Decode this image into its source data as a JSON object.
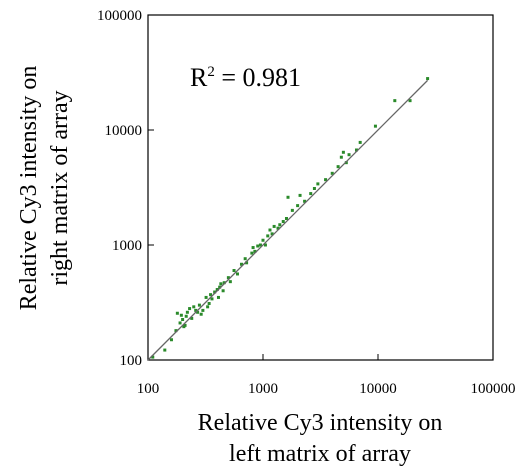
{
  "chart_data": {
    "type": "scatter",
    "x_scale": "log",
    "y_scale": "log",
    "xlim": [
      100,
      100000
    ],
    "ylim": [
      100,
      100000
    ],
    "x_ticks": [
      "100",
      "1000",
      "10000",
      "100000"
    ],
    "y_ticks": [
      "100",
      "1000",
      "10000",
      "100000"
    ],
    "xlabel_lines": [
      "Relative Cy3 intensity on",
      "left matrix of array"
    ],
    "ylabel_lines": [
      "Relative Cy3 intensity on",
      "right matrix of array"
    ],
    "annotation": {
      "base": "R",
      "sup": "2",
      "rest": " = 0.981"
    },
    "grid": false,
    "point_color": "#2a8a2a",
    "line_color": "#666666",
    "fit_line": [
      [
        100,
        100
      ],
      [
        27000,
        27000
      ]
    ],
    "points": [
      [
        110,
        106
      ],
      [
        140,
        122
      ],
      [
        160,
        150
      ],
      [
        175,
        180
      ],
      [
        180,
        255
      ],
      [
        190,
        210
      ],
      [
        195,
        245
      ],
      [
        200,
        225
      ],
      [
        205,
        195
      ],
      [
        210,
        200
      ],
      [
        215,
        240
      ],
      [
        220,
        260
      ],
      [
        230,
        280
      ],
      [
        240,
        230
      ],
      [
        250,
        290
      ],
      [
        260,
        270
      ],
      [
        270,
        260
      ],
      [
        280,
        300
      ],
      [
        290,
        250
      ],
      [
        300,
        270
      ],
      [
        320,
        350
      ],
      [
        330,
        290
      ],
      [
        340,
        310
      ],
      [
        350,
        370
      ],
      [
        360,
        340
      ],
      [
        380,
        390
      ],
      [
        400,
        410
      ],
      [
        410,
        350
      ],
      [
        420,
        430
      ],
      [
        430,
        460
      ],
      [
        450,
        400
      ],
      [
        460,
        470
      ],
      [
        500,
        520
      ],
      [
        520,
        480
      ],
      [
        560,
        600
      ],
      [
        600,
        560
      ],
      [
        650,
        680
      ],
      [
        700,
        760
      ],
      [
        720,
        700
      ],
      [
        800,
        850
      ],
      [
        820,
        950
      ],
      [
        850,
        880
      ],
      [
        900,
        980
      ],
      [
        950,
        1000
      ],
      [
        1000,
        1100
      ],
      [
        1050,
        1000
      ],
      [
        1100,
        1200
      ],
      [
        1150,
        1350
      ],
      [
        1200,
        1250
      ],
      [
        1250,
        1450
      ],
      [
        1350,
        1400
      ],
      [
        1400,
        1500
      ],
      [
        1500,
        1600
      ],
      [
        1600,
        1700
      ],
      [
        1650,
        2600
      ],
      [
        1800,
        2000
      ],
      [
        2000,
        2200
      ],
      [
        2100,
        2700
      ],
      [
        2300,
        2400
      ],
      [
        2600,
        2800
      ],
      [
        2800,
        3100
      ],
      [
        3000,
        3400
      ],
      [
        3500,
        3700
      ],
      [
        4000,
        4200
      ],
      [
        4500,
        4800
      ],
      [
        4800,
        5800
      ],
      [
        5000,
        6400
      ],
      [
        5300,
        5200
      ],
      [
        5600,
        6100
      ],
      [
        6500,
        6700
      ],
      [
        7000,
        7800
      ],
      [
        9500,
        10800
      ],
      [
        14000,
        18000
      ],
      [
        19000,
        18000
      ],
      [
        27000,
        28000
      ]
    ]
  }
}
